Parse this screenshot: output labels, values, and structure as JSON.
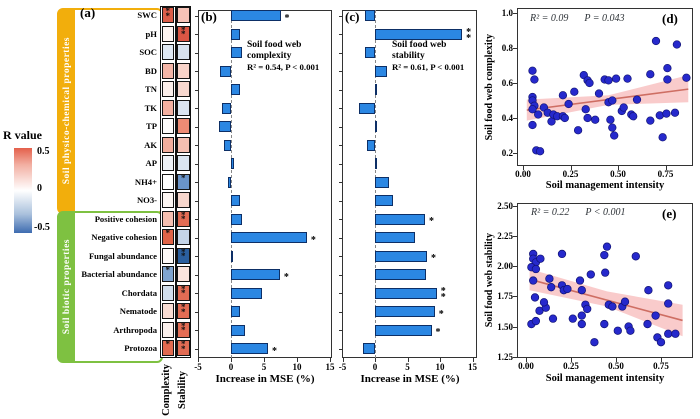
{
  "panels": {
    "a": "(a)",
    "b": "(b)",
    "c": "(c)",
    "d": "(d)",
    "e": "(e)"
  },
  "legend": {
    "title": "R value",
    "ticks": [
      "0.5",
      "0",
      "-0.5"
    ],
    "top_color": "#E4604B",
    "mid_color": "#FFFFFF",
    "bottom_color": "#3E6CB0"
  },
  "panel_a": {
    "columns": [
      "Complexity",
      "Stability"
    ],
    "groups": [
      {
        "label": "Soil physico-chemical properties",
        "color": "#F2AE0C"
      },
      {
        "label": "Soil biotic properties",
        "color": "#7EC141"
      }
    ]
  },
  "colors": {
    "bar_fill": "#2B87E3",
    "bar_border": "#0D2F66",
    "dot_fill": "#2629CC",
    "dot_border": "#101273",
    "trend_line": "#CE6E63",
    "trend_band": "#F8C2C2"
  },
  "chart_data": [
    {
      "id": "panel-a-heatmap",
      "type": "heatmap",
      "columns": [
        "Complexity",
        "Stability"
      ],
      "rows": [
        "SWC",
        "pH",
        "SOC",
        "BD",
        "TN",
        "TK",
        "TP",
        "AK",
        "AP",
        "NH4+",
        "NO3-",
        "Positive cohesion",
        "Negative cohesion",
        "Fungal abundance",
        "Bacterial abundance",
        "Chordata",
        "Nematode",
        "Arthropoda",
        "Protozoa"
      ],
      "group_split": 11,
      "complexity_colors": [
        "#DC5E49",
        "#FDF3F0",
        "#DFE8F3",
        "#F3B5A7",
        "#FCEFEB",
        "#F3B0A1",
        "#FDFBFA",
        "#F1AD9D",
        "#EDF1F7",
        "#FEFEFE",
        "#FDF6F3",
        "#F5BEB0",
        "#E06448",
        "#FDF9F7",
        "#80A4CF",
        "#D0DDEC",
        "#F9DCD3",
        "#FBF0EC",
        "#E16A50"
      ],
      "complexity_sig": [
        "**",
        "",
        "",
        "",
        "",
        "",
        "",
        "",
        "",
        "",
        "",
        "",
        "*",
        "",
        "*",
        "",
        "",
        "",
        "*"
      ],
      "stability_colors": [
        "#F6C3B7",
        "#DC5644",
        "#D7E1EE",
        "#F9D4CA",
        "#F8D8CF",
        "#DBE4F0",
        "#EE8B74",
        "#F5BFB1",
        "#DBE5F1",
        "#6A94C9",
        "#F8D7CD",
        "#E26C54",
        "#C5D5E8",
        "#2B5F9E",
        "#FBE4DD",
        "#E26C54",
        "#E26C54",
        "#E26C54",
        "#E26C54"
      ],
      "stability_sig": [
        "",
        "**",
        "",
        "",
        "",
        "",
        "",
        "",
        "",
        "*",
        "",
        "**",
        "",
        "**",
        "",
        "**",
        "**",
        "**",
        "**"
      ],
      "legend_ticks": [
        "0.5",
        "0",
        "-0.5"
      ]
    },
    {
      "id": "panel-b-importance",
      "type": "bar",
      "title": "Soil food web complexity",
      "stats": "R² = 0.54, P < 0.001",
      "xlabel": "Increase in MSE (%)",
      "xticks": [
        "-5",
        "0",
        "5",
        "10",
        "15"
      ],
      "xlim": [
        -5,
        15
      ],
      "values": [
        7.5,
        1.4,
        1.6,
        -1.6,
        1.3,
        -1.3,
        -1.8,
        -1.0,
        0.4,
        -0.4,
        1.3,
        1.6,
        11.5,
        0.3,
        7.4,
        4.7,
        1.4,
        2.1,
        5.6
      ],
      "sig": [
        "*",
        "",
        "",
        "",
        "",
        "",
        "",
        "",
        "",
        "",
        "",
        "",
        "*",
        "",
        "*",
        "",
        "",
        "",
        "*"
      ]
    },
    {
      "id": "panel-c-importance",
      "type": "bar",
      "title": "Soil food web stability",
      "stats": "R² = 0.61, P < 0.001",
      "xlabel": "Increase in MSE (%)",
      "xticks": [
        "-5",
        "0",
        "5",
        "10",
        "15"
      ],
      "xlim": [
        -5,
        15
      ],
      "values": [
        -1.5,
        13.4,
        -1.5,
        1.8,
        0.3,
        -2.5,
        0.3,
        -1.3,
        0.1,
        2.2,
        2.7,
        7.7,
        6.2,
        8.0,
        7.8,
        9.5,
        9.2,
        8.7,
        -1.9
      ],
      "sig": [
        "",
        "**",
        "",
        "",
        "",
        "",
        "",
        "",
        "",
        "",
        "",
        "*",
        "",
        "*",
        "",
        "**",
        "*",
        "*",
        ""
      ]
    },
    {
      "id": "panel-d-scatter",
      "type": "scatter",
      "r2": "R² = 0.09",
      "p": "P = 0.043",
      "xlabel": "Soil management intensity",
      "ylabel": "Soil food web complexity",
      "xticks": [
        "0.00",
        "0.25",
        "0.50",
        "0.75"
      ],
      "yticks": [
        "1.0",
        "0.8",
        "0.6",
        "0.4",
        "0.2"
      ],
      "xlim": [
        -0.03,
        0.9
      ],
      "ylim": [
        0.15,
        1.03
      ],
      "points": [
        [
          0.05,
          0.67
        ],
        [
          0.06,
          0.62
        ],
        [
          0.05,
          0.52
        ],
        [
          0.05,
          0.5
        ],
        [
          0.06,
          0.47
        ],
        [
          0.05,
          0.45
        ],
        [
          0.08,
          0.42
        ],
        [
          0.05,
          0.36
        ],
        [
          0.07,
          0.215
        ],
        [
          0.09,
          0.21
        ],
        [
          0.11,
          0.46
        ],
        [
          0.13,
          0.43
        ],
        [
          0.15,
          0.38
        ],
        [
          0.16,
          0.42
        ],
        [
          0.18,
          0.41
        ],
        [
          0.21,
          0.53
        ],
        [
          0.21,
          0.41
        ],
        [
          0.22,
          0.4
        ],
        [
          0.24,
          0.48
        ],
        [
          0.27,
          0.55
        ],
        [
          0.29,
          0.33
        ],
        [
          0.32,
          0.645
        ],
        [
          0.33,
          0.45
        ],
        [
          0.34,
          0.615
        ],
        [
          0.35,
          0.6
        ],
        [
          0.34,
          0.4
        ],
        [
          0.38,
          0.39
        ],
        [
          0.4,
          0.54
        ],
        [
          0.43,
          0.62
        ],
        [
          0.45,
          0.615
        ],
        [
          0.45,
          0.49
        ],
        [
          0.46,
          0.39
        ],
        [
          0.47,
          0.5
        ],
        [
          0.47,
          0.345
        ],
        [
          0.48,
          0.3
        ],
        [
          0.49,
          0.625
        ],
        [
          0.52,
          0.44
        ],
        [
          0.53,
          0.46
        ],
        [
          0.55,
          0.625
        ],
        [
          0.57,
          0.42
        ],
        [
          0.58,
          0.41
        ],
        [
          0.6,
          0.505
        ],
        [
          0.67,
          0.65
        ],
        [
          0.67,
          0.385
        ],
        [
          0.7,
          0.84
        ],
        [
          0.72,
          0.415
        ],
        [
          0.735,
          0.29
        ],
        [
          0.76,
          0.685
        ],
        [
          0.76,
          0.62
        ],
        [
          0.755,
          0.425
        ],
        [
          0.81,
          0.82
        ],
        [
          0.8,
          0.43
        ],
        [
          0.86,
          0.63
        ]
      ],
      "trend": [
        [
          0.02,
          0.445
        ],
        [
          0.87,
          0.565
        ]
      ],
      "band_top": [
        [
          0.02,
          0.505
        ],
        [
          0.45,
          0.53
        ],
        [
          0.87,
          0.645
        ]
      ],
      "band_bottom": [
        [
          0.02,
          0.385
        ],
        [
          0.45,
          0.475
        ],
        [
          0.87,
          0.49
        ]
      ]
    },
    {
      "id": "panel-e-scatter",
      "type": "scatter",
      "r2": "R² = 0.22",
      "p": "P < 0.001",
      "xlabel": "Soil management intensity",
      "ylabel": "Soil food web stability",
      "xticks": [
        "0.00",
        "0.25",
        "0.50",
        "0.75"
      ],
      "yticks": [
        "2.50",
        "2.25",
        "2.00",
        "1.75",
        "1.50",
        "1.25"
      ],
      "xlim": [
        -0.03,
        0.9
      ],
      "ylim": [
        1.25,
        2.5
      ],
      "points": [
        [
          0.04,
          2.1
        ],
        [
          0.04,
          2.06
        ],
        [
          0.055,
          2.03
        ],
        [
          0.03,
          1.99
        ],
        [
          0.055,
          1.975
        ],
        [
          0.08,
          2.06
        ],
        [
          0.05,
          1.74
        ],
        [
          0.04,
          1.88
        ],
        [
          0.03,
          1.52
        ],
        [
          0.055,
          1.545
        ],
        [
          0.075,
          1.63
        ],
        [
          0.11,
          1.655
        ],
        [
          0.1,
          1.7
        ],
        [
          0.13,
          1.895
        ],
        [
          0.14,
          1.825
        ],
        [
          0.15,
          1.565
        ],
        [
          0.2,
          2.1
        ],
        [
          0.2,
          1.84
        ],
        [
          0.21,
          1.8
        ],
        [
          0.23,
          1.81
        ],
        [
          0.26,
          1.565
        ],
        [
          0.3,
          1.88
        ],
        [
          0.31,
          1.8
        ],
        [
          0.31,
          1.59
        ],
        [
          0.31,
          1.52
        ],
        [
          0.33,
          1.68
        ],
        [
          0.34,
          1.645
        ],
        [
          0.36,
          1.93
        ],
        [
          0.38,
          1.37
        ],
        [
          0.435,
          2.09
        ],
        [
          0.45,
          2.16
        ],
        [
          0.44,
          1.945
        ],
        [
          0.435,
          1.52
        ],
        [
          0.46,
          1.68
        ],
        [
          0.48,
          1.665
        ],
        [
          0.51,
          1.465
        ],
        [
          0.535,
          1.665
        ],
        [
          0.55,
          1.705
        ],
        [
          0.57,
          1.5
        ],
        [
          0.58,
          1.465
        ],
        [
          0.61,
          2.08
        ],
        [
          0.68,
          1.8
        ],
        [
          0.675,
          1.52
        ],
        [
          0.72,
          1.59
        ],
        [
          0.73,
          1.41
        ],
        [
          0.75,
          1.37
        ],
        [
          0.79,
          1.84
        ],
        [
          0.79,
          1.69
        ],
        [
          0.79,
          1.44
        ],
        [
          0.83,
          1.44
        ]
      ],
      "trend": [
        [
          0.02,
          1.89
        ],
        [
          0.87,
          1.55
        ]
      ],
      "band_top": [
        [
          0.02,
          1.975
        ],
        [
          0.45,
          1.79
        ],
        [
          0.87,
          1.68
        ]
      ],
      "band_bottom": [
        [
          0.02,
          1.8
        ],
        [
          0.45,
          1.665
        ],
        [
          0.87,
          1.42
        ]
      ]
    }
  ]
}
